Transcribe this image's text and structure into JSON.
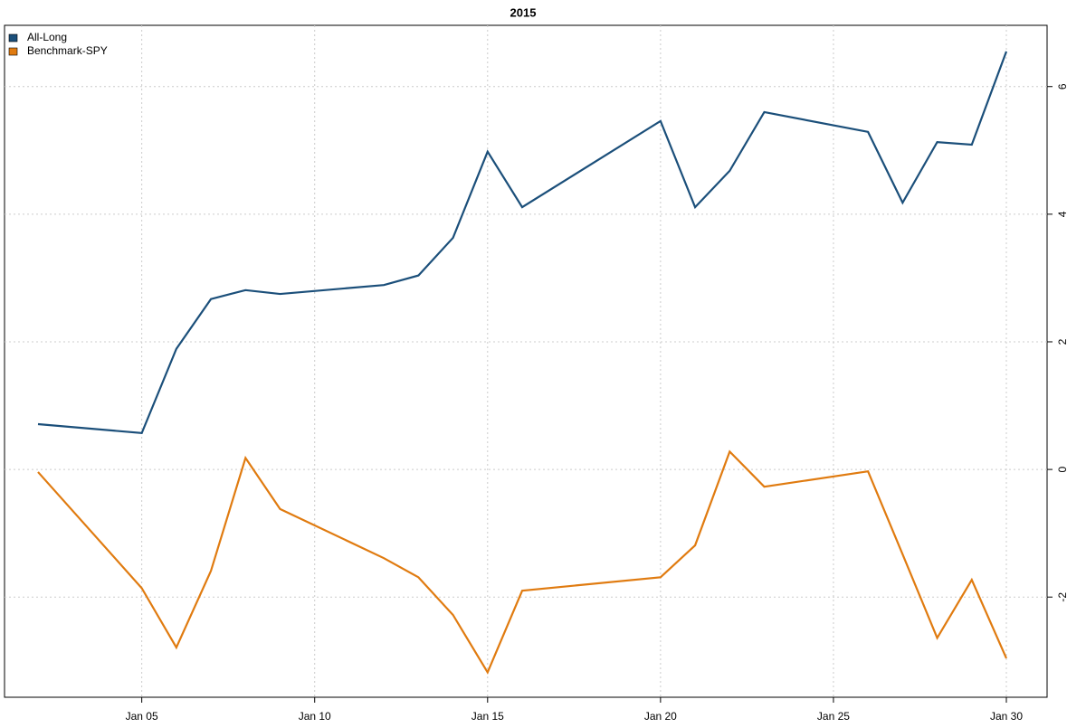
{
  "chart_data": {
    "type": "line",
    "title": "2015",
    "x": [
      "Jan 02",
      "Jan 05",
      "Jan 06",
      "Jan 07",
      "Jan 08",
      "Jan 09",
      "Jan 12",
      "Jan 13",
      "Jan 14",
      "Jan 15",
      "Jan 16",
      "Jan 20",
      "Jan 21",
      "Jan 22",
      "Jan 23",
      "Jan 26",
      "Jan 27",
      "Jan 28",
      "Jan 29",
      "Jan 30"
    ],
    "series": [
      {
        "name": "All-Long",
        "color": "#1b4f7a",
        "values": [
          0.71,
          0.57,
          1.89,
          2.67,
          2.81,
          2.75,
          2.89,
          3.04,
          3.63,
          4.98,
          4.11,
          5.46,
          4.11,
          4.68,
          5.6,
          5.29,
          4.18,
          5.13,
          5.09,
          6.55
        ]
      },
      {
        "name": "Benchmark-SPY",
        "color": "#e07b10",
        "values": [
          -0.04,
          -1.86,
          -2.79,
          -1.59,
          0.18,
          -0.62,
          -1.39,
          -1.69,
          -2.28,
          -3.18,
          -1.9,
          -1.69,
          -1.19,
          0.28,
          -0.27,
          -0.03,
          -1.33,
          -2.64,
          -1.73,
          -2.96
        ]
      }
    ],
    "xlim": [
      "Jan 02",
      "Jan 30"
    ],
    "xticks": [
      "Jan 05",
      "Jan 10",
      "Jan 15",
      "Jan 20",
      "Jan 25",
      "Jan 30"
    ],
    "ylim": [
      -3.57,
      6.96
    ],
    "yticks": [
      -2,
      0,
      2,
      4,
      6
    ],
    "grid": true,
    "legend": "top-left"
  }
}
